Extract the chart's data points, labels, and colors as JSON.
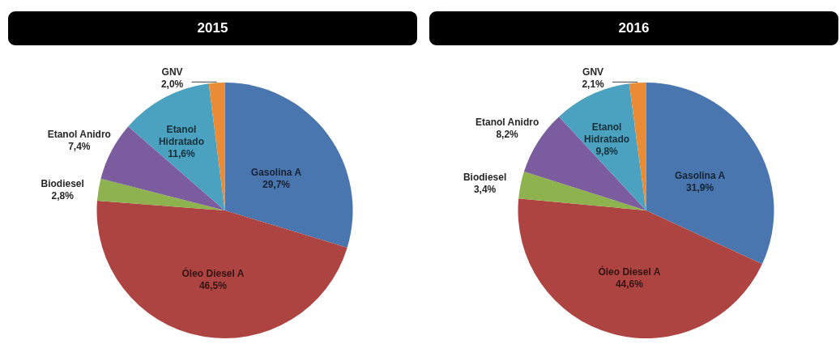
{
  "chart_data": [
    {
      "type": "pie",
      "title": "2015",
      "categories": [
        "Gasolina A",
        "Óleo Diesel A",
        "Biodiesel",
        "Etanol Anidro",
        "Etanol Hidratado",
        "GNV"
      ],
      "values": [
        29.7,
        46.5,
        2.8,
        7.4,
        11.6,
        2.0
      ],
      "colors": [
        "#4a76b0",
        "#ae4441",
        "#8db24e",
        "#7b5c9e",
        "#4aa2c0",
        "#ea8c35"
      ],
      "value_labels": [
        "29,7%",
        "46,5%",
        "2,8%",
        "7,4%",
        "11,6%",
        "2,0%"
      ]
    },
    {
      "type": "pie",
      "title": "2016",
      "categories": [
        "Gasolina A",
        "Óleo Diesel A",
        "Biodiesel",
        "Etanol Anidro",
        "Etanol Hidratado",
        "GNV"
      ],
      "values": [
        31.9,
        44.6,
        3.4,
        8.2,
        9.8,
        2.1
      ],
      "colors": [
        "#4a76b0",
        "#ae4441",
        "#8db24e",
        "#7b5c9e",
        "#4aa2c0",
        "#ea8c35"
      ],
      "value_labels": [
        "31,9%",
        "44,6%",
        "3,4%",
        "8,2%",
        "9,8%",
        "2,1%"
      ]
    }
  ]
}
